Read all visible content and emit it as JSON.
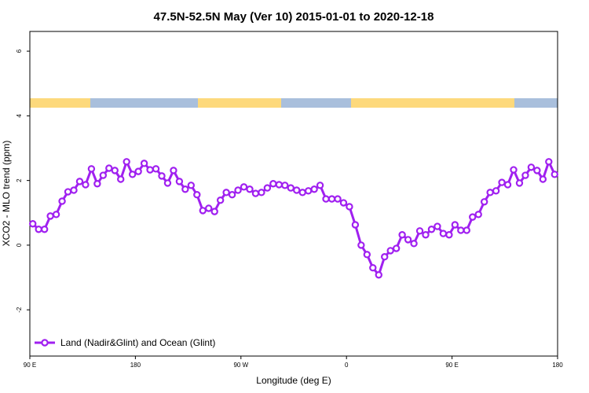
{
  "chart_data": {
    "type": "line",
    "title": "47.5N-52.5N May (Ver 10)   2015-01-01 to 2020-12-18",
    "xlabel": "Longitude (deg E)",
    "ylabel": "XCO2 - MLO trend (ppm)",
    "xlim": [
      90,
      540
    ],
    "ylim": [
      -3.43,
      6.61
    ],
    "xticks": [
      {
        "value": 90,
        "label": "90 E"
      },
      180,
      {
        "value": 270,
        "label": "90 W"
      },
      {
        "value": 360,
        "label": "0"
      },
      {
        "value": 450,
        "label": "90 E"
      },
      {
        "value": 540,
        "label": "180"
      }
    ],
    "yticks": [
      -2,
      0,
      2,
      4,
      6
    ],
    "legend": "lower left",
    "x": [
      92.5,
      97.5,
      102.5,
      107.5,
      112.5,
      117.5,
      122.5,
      127.5,
      132.5,
      137.5,
      142.5,
      147.5,
      152.5,
      157.5,
      162.5,
      167.5,
      172.5,
      177.5,
      182.5,
      187.5,
      192.5,
      197.5,
      202.5,
      207.5,
      212.5,
      217.5,
      222.5,
      227.5,
      232.5,
      237.5,
      242.5,
      247.5,
      252.5,
      257.5,
      262.5,
      267.5,
      272.5,
      277.5,
      282.5,
      287.5,
      292.5,
      297.5,
      302.5,
      307.5,
      312.5,
      317.5,
      322.5,
      327.5,
      332.5,
      337.5,
      342.5,
      347.5,
      352.5,
      357.5,
      362.5,
      367.5,
      372.5,
      377.5,
      382.5,
      387.5,
      392.5,
      397.5,
      402.5,
      407.5,
      412.5,
      417.5,
      422.5,
      427.5,
      432.5,
      437.5,
      442.5,
      447.5,
      452.5,
      457.5,
      462.5,
      467.5,
      472.5,
      477.5,
      482.5,
      487.5,
      492.5,
      497.5,
      502.5,
      507.5,
      512.5,
      517.5,
      522.5,
      527.5,
      532.5,
      537.5
    ],
    "series": [
      {
        "name": "Land (Nadir&Glint) and Ocean (Glint)",
        "color": "#a020f0",
        "values": [
          0.66,
          0.49,
          0.49,
          0.9,
          0.95,
          1.36,
          1.65,
          1.7,
          1.97,
          1.87,
          2.36,
          1.9,
          2.16,
          2.38,
          2.31,
          2.04,
          2.58,
          2.19,
          2.28,
          2.53,
          2.33,
          2.36,
          2.14,
          1.92,
          2.31,
          1.97,
          1.73,
          1.85,
          1.56,
          1.07,
          1.14,
          1.04,
          1.39,
          1.63,
          1.56,
          1.7,
          1.8,
          1.73,
          1.6,
          1.63,
          1.77,
          1.9,
          1.87,
          1.85,
          1.77,
          1.7,
          1.63,
          1.68,
          1.73,
          1.85,
          1.43,
          1.43,
          1.43,
          1.31,
          1.19,
          0.63,
          0,
          -0.29,
          -0.7,
          -0.92,
          -0.36,
          -0.17,
          -0.1,
          0.32,
          0.17,
          0.05,
          0.44,
          0.32,
          0.49,
          0.58,
          0.36,
          0.32,
          0.63,
          0.46,
          0.46,
          0.87,
          0.95,
          1.34,
          1.63,
          1.68,
          1.94,
          1.87,
          2.33,
          1.92,
          2.16,
          2.41,
          2.31,
          2.04,
          2.58,
          2.19
        ]
      }
    ]
  }
}
